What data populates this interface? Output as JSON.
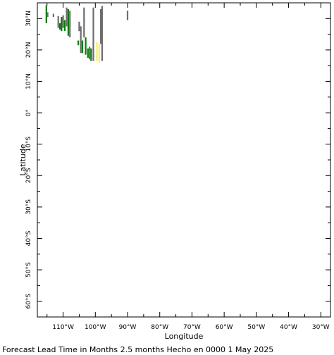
{
  "map": {
    "xlabel": "Longitude",
    "ylabel": "Latitude",
    "footer": "Forecast Lead Time in Months 2.5 months Hecho en 0000 1 May 2025",
    "lon_range": [
      -118,
      -27
    ],
    "lat_range": [
      -65,
      35
    ],
    "lon_ticks": [
      {
        "value": -110,
        "label": "110°W"
      },
      {
        "value": -100,
        "label": "100°W"
      },
      {
        "value": -90,
        "label": "90°W"
      },
      {
        "value": -80,
        "label": "80°W"
      },
      {
        "value": -70,
        "label": "70°W"
      },
      {
        "value": -60,
        "label": "60°W"
      },
      {
        "value": -50,
        "label": "50°W"
      },
      {
        "value": -40,
        "label": "40°W"
      },
      {
        "value": -30,
        "label": "30°W"
      }
    ],
    "lat_ticks": [
      {
        "value": 30,
        "label": "30°N"
      },
      {
        "value": 20,
        "label": "20°N"
      },
      {
        "value": 10,
        "label": "10°N"
      },
      {
        "value": 0,
        "label": "0°"
      },
      {
        "value": -10,
        "label": "10°S"
      },
      {
        "value": -20,
        "label": "20°S"
      },
      {
        "value": -30,
        "label": "30°S"
      },
      {
        "value": -40,
        "label": "40°S"
      },
      {
        "value": -50,
        "label": "50°S"
      },
      {
        "value": -60,
        "label": "60°S"
      }
    ],
    "colors": {
      "gray": "#6e6e6e",
      "green": "#0a7a0a",
      "yellow": "#f5ef6a"
    },
    "cells": [
      {
        "lon": -115.2,
        "lat_top": 34.2,
        "lat_bottom": 28.5,
        "color": "green"
      },
      {
        "lon": -114.8,
        "lat_top": 32.0,
        "lat_bottom": 30.5,
        "color": "gray"
      },
      {
        "lon": -113.0,
        "lat_top": 31.5,
        "lat_bottom": 30.5,
        "color": "gray"
      },
      {
        "lon": -111.5,
        "lat_top": 30.8,
        "lat_bottom": 27.0,
        "color": "gray"
      },
      {
        "lon": -111.0,
        "lat_top": 28.5,
        "lat_bottom": 26.5,
        "color": "green"
      },
      {
        "lon": -110.5,
        "lat_top": 30.5,
        "lat_bottom": 26.0,
        "color": "green"
      },
      {
        "lon": -110.0,
        "lat_top": 31.0,
        "lat_bottom": 27.0,
        "color": "gray"
      },
      {
        "lon": -109.5,
        "lat_top": 29.5,
        "lat_bottom": 26.0,
        "color": "green"
      },
      {
        "lon": -108.9,
        "lat_top": 33.5,
        "lat_bottom": 27.5,
        "color": "gray"
      },
      {
        "lon": -108.4,
        "lat_top": 33.0,
        "lat_bottom": 24.5,
        "color": "green"
      },
      {
        "lon": -107.9,
        "lat_top": 32.5,
        "lat_bottom": 24.0,
        "color": "gray"
      },
      {
        "lon": -105.3,
        "lat_top": 23.0,
        "lat_bottom": 21.5,
        "color": "green"
      },
      {
        "lon": -105.0,
        "lat_top": 29.0,
        "lat_bottom": 26.0,
        "color": "gray"
      },
      {
        "lon": -104.5,
        "lat_top": 27.5,
        "lat_bottom": 19.0,
        "color": "gray"
      },
      {
        "lon": -104.0,
        "lat_top": 23.0,
        "lat_bottom": 19.0,
        "color": "green"
      },
      {
        "lon": -103.5,
        "lat_top": 33.5,
        "lat_bottom": 24.0,
        "color": "gray"
      },
      {
        "lon": -103.0,
        "lat_top": 24.0,
        "lat_bottom": 18.5,
        "color": "green"
      },
      {
        "lon": -102.3,
        "lat_top": 20.5,
        "lat_bottom": 17.5,
        "color": "green"
      },
      {
        "lon": -101.8,
        "lat_top": 21.0,
        "lat_bottom": 17.0,
        "color": "gray"
      },
      {
        "lon": -101.3,
        "lat_top": 20.5,
        "lat_bottom": 16.5,
        "color": "green"
      },
      {
        "lon": -100.6,
        "lat_top": 33.5,
        "lat_bottom": 16.5,
        "color": "gray"
      },
      {
        "lon": -99.5,
        "lat_top": 22.5,
        "lat_bottom": 16.5,
        "color": "yellow"
      },
      {
        "lon": -98.8,
        "lat_top": 22.0,
        "lat_bottom": 16.0,
        "color": "yellow"
      },
      {
        "lon": -98.3,
        "lat_top": 33.0,
        "lat_bottom": 22.0,
        "color": "gray"
      },
      {
        "lon": -97.9,
        "lat_top": 34.0,
        "lat_bottom": 16.5,
        "color": "gray"
      },
      {
        "lon": -90.0,
        "lat_top": 32.5,
        "lat_bottom": 29.5,
        "color": "gray"
      }
    ]
  }
}
